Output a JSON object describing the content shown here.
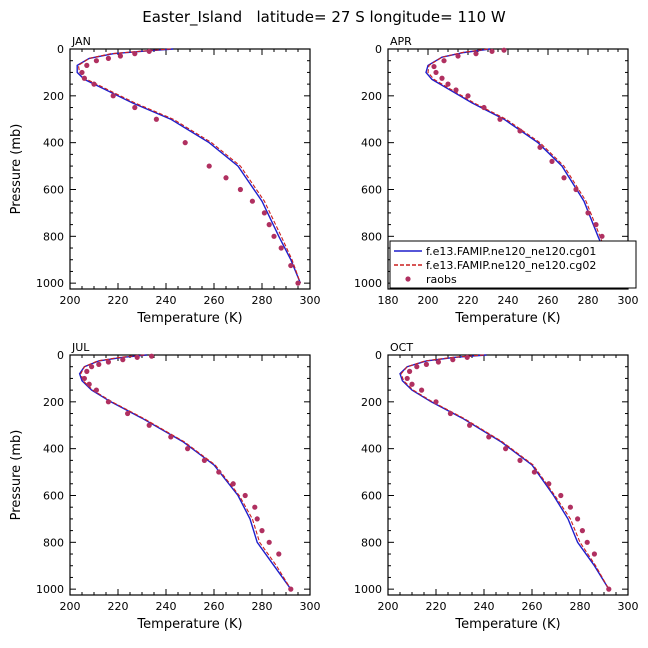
{
  "figure": {
    "title": "Easter_Island   latitude= 27 S longitude= 110 W"
  },
  "legend": {
    "panel": 1,
    "entries": [
      {
        "label": "f.e13.FAMIP.ne120_ne120.cg01",
        "color": "#1f1fcc",
        "style": "solid"
      },
      {
        "label": "f.e13.FAMIP.ne120_ne120.cg02",
        "color": "#cc1f1f",
        "style": "dashed"
      },
      {
        "label": "raobs",
        "color": "#b03060",
        "style": "dot"
      }
    ]
  },
  "chart_data": [
    {
      "type": "line",
      "title": "JAN",
      "xlabel": "Temperature (K)",
      "ylabel": "Pressure (mb)",
      "xlim": [
        200,
        300
      ],
      "ylim": [
        1025,
        0
      ],
      "xticks": [
        200,
        220,
        240,
        260,
        280,
        300
      ],
      "yticks": [
        0,
        200,
        400,
        600,
        800,
        1000
      ],
      "series": [
        {
          "name": "f.e13.FAMIP.ne120_ne120.cg01",
          "color": "#1f1fcc",
          "x": [
            243,
            230,
            218,
            208,
            203,
            203,
            206,
            214,
            226,
            242,
            258,
            270,
            280,
            287,
            292,
            296
          ],
          "y": [
            0,
            10,
            20,
            40,
            70,
            100,
            130,
            170,
            230,
            300,
            400,
            500,
            650,
            800,
            900,
            1000
          ]
        },
        {
          "name": "f.e13.FAMIP.ne120_ne120.cg02",
          "color": "#cc1f1f",
          "x": [
            242,
            229,
            217,
            208,
            203.5,
            204,
            207,
            215,
            227,
            243,
            259,
            271,
            281,
            288,
            292.5,
            296
          ],
          "y": [
            0,
            10,
            20,
            40,
            70,
            100,
            130,
            170,
            230,
            300,
            400,
            500,
            650,
            800,
            900,
            1000
          ]
        },
        {
          "name": "raobs",
          "color": "#b03060",
          "x": [
            233,
            227,
            221,
            216,
            211,
            207,
            205,
            206,
            210,
            218,
            227,
            236,
            248,
            258,
            265,
            271,
            276,
            281,
            283,
            285,
            288,
            292,
            295
          ],
          "y": [
            10,
            20,
            30,
            40,
            50,
            70,
            100,
            125,
            150,
            200,
            250,
            300,
            400,
            500,
            550,
            600,
            650,
            700,
            750,
            800,
            850,
            925,
            1000
          ]
        }
      ]
    },
    {
      "type": "line",
      "title": "APR",
      "xlabel": "Temperature (K)",
      "ylabel": "",
      "xlim": [
        180,
        300
      ],
      "ylim": [
        1025,
        0
      ],
      "xticks": [
        180,
        200,
        220,
        240,
        260,
        280,
        300
      ],
      "yticks": [
        0,
        200,
        400,
        600,
        800,
        1000
      ],
      "series": [
        {
          "name": "f.e13.FAMIP.ne120_ne120.cg01",
          "color": "#1f1fcc",
          "x": [
            231,
            218,
            207,
            200,
            199,
            202,
            210,
            222,
            238,
            255,
            267,
            278,
            285,
            290,
            295
          ],
          "y": [
            0,
            15,
            35,
            70,
            100,
            130,
            170,
            230,
            300,
            400,
            500,
            650,
            800,
            900,
            1000
          ]
        },
        {
          "name": "f.e13.FAMIP.ne120_ne120.cg02",
          "color": "#cc1f1f",
          "x": [
            230,
            217,
            207,
            200.5,
            200,
            203,
            211,
            223,
            239,
            256,
            268,
            279,
            286,
            290.5,
            295
          ],
          "y": [
            0,
            15,
            35,
            70,
            100,
            130,
            170,
            230,
            300,
            400,
            500,
            650,
            800,
            900,
            1000
          ]
        },
        {
          "name": "raobs",
          "color": "#b03060",
          "x": [
            238,
            232,
            224,
            215,
            208,
            203,
            204,
            207,
            210,
            214,
            220,
            228,
            236,
            246,
            256,
            262,
            268,
            274,
            280,
            284,
            287,
            291,
            295
          ],
          "y": [
            5,
            10,
            20,
            30,
            50,
            75,
            100,
            125,
            150,
            175,
            200,
            250,
            300,
            350,
            420,
            480,
            550,
            600,
            700,
            750,
            800,
            900,
            1000
          ]
        }
      ]
    },
    {
      "type": "line",
      "title": "JUL",
      "xlabel": "Temperature (K)",
      "ylabel": "Pressure (mb)",
      "xlim": [
        200,
        300
      ],
      "ylim": [
        1025,
        0
      ],
      "xticks": [
        200,
        220,
        240,
        260,
        280,
        300
      ],
      "yticks": [
        0,
        200,
        400,
        600,
        800,
        1000
      ],
      "series": [
        {
          "name": "f.e13.FAMIP.ne120_ne120.cg01",
          "color": "#1f1fcc",
          "x": [
            232,
            222,
            212,
            206,
            204,
            205,
            209,
            217,
            230,
            247,
            260,
            270,
            275,
            278,
            285,
            292
          ],
          "y": [
            0,
            10,
            25,
            50,
            80,
            110,
            150,
            200,
            270,
            370,
            470,
            600,
            700,
            800,
            900,
            1000
          ]
        },
        {
          "name": "f.e13.FAMIP.ne120_ne120.cg02",
          "color": "#cc1f1f",
          "x": [
            231,
            221,
            211.5,
            206,
            204.5,
            205.5,
            209.5,
            217.5,
            230.5,
            247.5,
            260.5,
            270.5,
            276,
            279,
            286,
            292
          ],
          "y": [
            0,
            10,
            25,
            50,
            80,
            110,
            150,
            200,
            270,
            370,
            470,
            600,
            700,
            800,
            900,
            1000
          ]
        },
        {
          "name": "raobs",
          "color": "#b03060",
          "x": [
            234,
            228,
            222,
            216,
            212,
            209,
            207,
            206,
            208,
            211,
            216,
            224,
            233,
            242,
            249,
            256,
            262,
            268,
            273,
            277,
            278,
            280,
            283,
            287,
            292
          ],
          "y": [
            5,
            10,
            20,
            30,
            40,
            50,
            70,
            100,
            125,
            150,
            200,
            250,
            300,
            350,
            400,
            450,
            500,
            550,
            600,
            650,
            700,
            750,
            800,
            850,
            1000
          ]
        }
      ]
    },
    {
      "type": "line",
      "title": "OCT",
      "xlabel": "Temperature (K)",
      "ylabel": "",
      "xlim": [
        200,
        300
      ],
      "ylim": [
        1025,
        0
      ],
      "xticks": [
        200,
        220,
        240,
        260,
        280,
        300
      ],
      "yticks": [
        0,
        200,
        400,
        600,
        800,
        1000
      ],
      "series": [
        {
          "name": "f.e13.FAMIP.ne120_ne120.cg01",
          "color": "#1f1fcc",
          "x": [
            241,
            228,
            216,
            208,
            205,
            206,
            210,
            218,
            231,
            247,
            260,
            269,
            275,
            279,
            286,
            292
          ],
          "y": [
            0,
            10,
            25,
            50,
            80,
            110,
            150,
            200,
            270,
            370,
            470,
            600,
            700,
            800,
            900,
            1000
          ]
        },
        {
          "name": "f.e13.FAMIP.ne120_ne120.cg02",
          "color": "#cc1f1f",
          "x": [
            240,
            227,
            215.5,
            208,
            205.5,
            206.5,
            210.5,
            218.5,
            231.5,
            247.5,
            260.5,
            269.5,
            276,
            280,
            286.5,
            292
          ],
          "y": [
            0,
            10,
            25,
            50,
            80,
            110,
            150,
            200,
            270,
            370,
            470,
            600,
            700,
            800,
            900,
            1000
          ]
        },
        {
          "name": "raobs",
          "color": "#b03060",
          "x": [
            233,
            227,
            221,
            216,
            212,
            209,
            208,
            210,
            214,
            220,
            226,
            234,
            242,
            249,
            255,
            261,
            267,
            272,
            276,
            279,
            281,
            283,
            286,
            292
          ],
          "y": [
            10,
            20,
            30,
            40,
            50,
            70,
            100,
            125,
            150,
            200,
            250,
            300,
            350,
            400,
            450,
            500,
            550,
            600,
            650,
            700,
            750,
            800,
            850,
            1000
          ]
        }
      ]
    }
  ]
}
